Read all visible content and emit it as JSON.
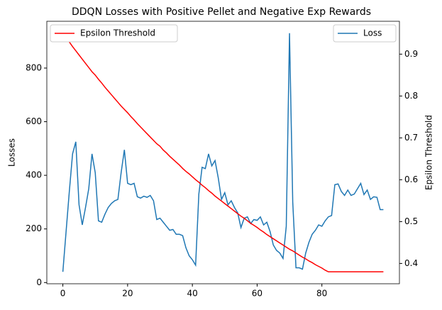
{
  "chart_data": {
    "type": "line",
    "title": "DDQN Losses with Positive Pellet and Negative Exp Rewards",
    "ylabel": "Losses",
    "y2label": "Epsilon Threshold",
    "x": [
      0,
      1,
      2,
      3,
      4,
      5,
      6,
      7,
      8,
      9,
      10,
      11,
      12,
      13,
      14,
      15,
      16,
      17,
      18,
      19,
      20,
      21,
      22,
      23,
      24,
      25,
      26,
      27,
      28,
      29,
      30,
      31,
      32,
      33,
      34,
      35,
      36,
      37,
      38,
      39,
      40,
      41,
      42,
      43,
      44,
      45,
      46,
      47,
      48,
      49,
      50,
      51,
      52,
      53,
      54,
      55,
      56,
      57,
      58,
      59,
      60,
      61,
      62,
      63,
      64,
      65,
      66,
      67,
      68,
      69,
      70,
      71,
      72,
      73,
      74,
      75,
      76,
      77,
      78,
      79,
      80,
      81,
      82,
      83,
      84,
      85,
      86,
      87,
      88,
      89,
      90,
      91,
      92,
      93,
      94,
      95,
      96,
      97,
      98,
      99
    ],
    "series": [
      {
        "name": "Loss",
        "color": "#1f77b4",
        "axis": "y",
        "legend": "upper right",
        "values": [
          40,
          190,
          340,
          480,
          525,
          290,
          215,
          280,
          350,
          480,
          410,
          230,
          225,
          255,
          280,
          295,
          305,
          310,
          410,
          495,
          370,
          365,
          370,
          320,
          315,
          322,
          318,
          325,
          305,
          235,
          240,
          225,
          210,
          195,
          198,
          180,
          180,
          175,
          130,
          100,
          85,
          65,
          330,
          430,
          425,
          480,
          435,
          455,
          390,
          310,
          335,
          290,
          305,
          280,
          260,
          205,
          240,
          245,
          220,
          235,
          232,
          245,
          215,
          225,
          190,
          140,
          120,
          110,
          90,
          210,
          930,
          300,
          55,
          55,
          50,
          110,
          150,
          180,
          195,
          215,
          210,
          230,
          245,
          250,
          365,
          368,
          340,
          325,
          345,
          325,
          330,
          350,
          370,
          328,
          345,
          310,
          320,
          318,
          272,
          272
        ]
      },
      {
        "name": "Epsilon Threshold",
        "color": "#ff0000",
        "axis": "y2",
        "legend": "upper left",
        "values": [
          0.95,
          0.939,
          0.929,
          0.918,
          0.908,
          0.898,
          0.888,
          0.878,
          0.868,
          0.858,
          0.85,
          0.84,
          0.831,
          0.821,
          0.812,
          0.803,
          0.794,
          0.785,
          0.776,
          0.768,
          0.76,
          0.751,
          0.743,
          0.734,
          0.726,
          0.718,
          0.71,
          0.702,
          0.694,
          0.686,
          0.68,
          0.671,
          0.664,
          0.656,
          0.649,
          0.642,
          0.635,
          0.627,
          0.62,
          0.614,
          0.607,
          0.6,
          0.594,
          0.587,
          0.581,
          0.574,
          0.568,
          0.561,
          0.555,
          0.549,
          0.543,
          0.537,
          0.531,
          0.525,
          0.519,
          0.513,
          0.508,
          0.502,
          0.496,
          0.491,
          0.486,
          0.48,
          0.475,
          0.469,
          0.464,
          0.459,
          0.454,
          0.449,
          0.444,
          0.439,
          0.434,
          0.43,
          0.425,
          0.42,
          0.415,
          0.411,
          0.406,
          0.402,
          0.397,
          0.393,
          0.389,
          0.384,
          0.38,
          0.38,
          0.38,
          0.38,
          0.38,
          0.38,
          0.38,
          0.38,
          0.38,
          0.38,
          0.38,
          0.38,
          0.38,
          0.38,
          0.38,
          0.38,
          0.38,
          0.38
        ]
      }
    ],
    "xlim": [
      -4.95,
      103.95
    ],
    "xticks": [
      0,
      20,
      40,
      60,
      80
    ],
    "ylim": [
      -4.5,
      974.5
    ],
    "yticks": [
      0,
      200,
      400,
      600,
      800
    ],
    "y2lim": [
      0.3515,
      0.9785
    ],
    "y2ticks": [
      0.4,
      0.5,
      0.6,
      0.7,
      0.8,
      0.9
    ]
  }
}
